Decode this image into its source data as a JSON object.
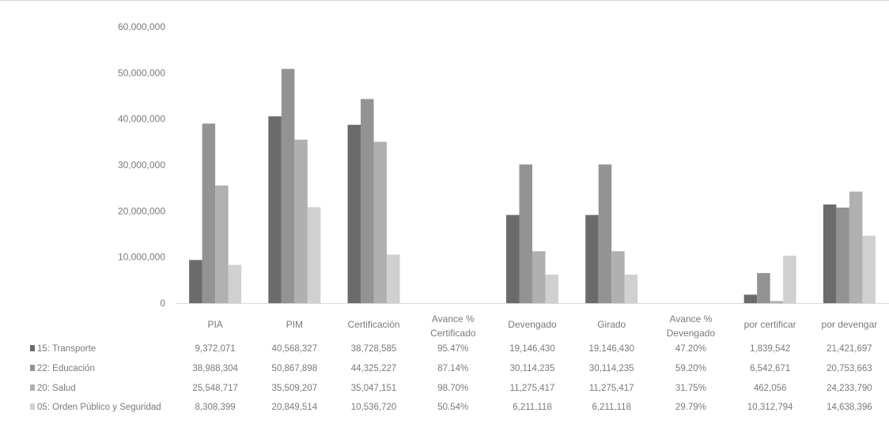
{
  "chart_data": {
    "type": "bar",
    "categories": [
      [
        "PIA"
      ],
      [
        "PIM"
      ],
      [
        "Certificación"
      ],
      [
        "Avance %",
        "Certificado"
      ],
      [
        "Devengado"
      ],
      [
        "Girado"
      ],
      [
        "Avance %",
        "Devengado"
      ],
      [
        "por certificar"
      ],
      [
        "por devengar"
      ]
    ],
    "ylim": [
      0,
      60000000
    ],
    "yticks": [
      "0",
      "10,000,000",
      "20,000,000",
      "30,000,000",
      "40,000,000",
      "50,000,000",
      "60,000,000"
    ],
    "ytick_values": [
      0,
      10000000,
      20000000,
      30000000,
      40000000,
      50000000,
      60000000
    ],
    "grid": false,
    "legend": "data-table",
    "colors": [
      "#6b6b6b",
      "#939393",
      "#b0b0b0",
      "#d0d0d0"
    ],
    "series": [
      {
        "name": "15: Transporte",
        "values": [
          9372071,
          40568327,
          38728585,
          0.9547,
          19146430,
          19146430,
          0.472,
          1839542,
          21421697
        ],
        "labels": [
          "9,372,071",
          "40,568,327",
          "38,728,585",
          "95.47%",
          "19,146,430",
          "19,146,430",
          "47.20%",
          "1,839,542",
          "21,421,697"
        ]
      },
      {
        "name": "22: Educación",
        "values": [
          38988304,
          50867898,
          44325227,
          0.8714,
          30114235,
          30114235,
          0.592,
          6542671,
          20753663
        ],
        "labels": [
          "38,988,304",
          "50,867,898",
          "44,325,227",
          "87.14%",
          "30,114,235",
          "30,114,235",
          "59.20%",
          "6,542,671",
          "20,753,663"
        ]
      },
      {
        "name": "20: Salud",
        "values": [
          25548717,
          35509207,
          35047151,
          0.987,
          11275417,
          11275417,
          0.3175,
          462056,
          24233790
        ],
        "labels": [
          "25,548,717",
          "35,509,207",
          "35,047,151",
          "98.70%",
          "11,275,417",
          "11,275,417",
          "31.75%",
          "462,056",
          "24,233,790"
        ]
      },
      {
        "name": "05: Orden Público y Seguridad",
        "values": [
          8308399,
          20849514,
          10536720,
          0.5054,
          6211118,
          6211118,
          0.2979,
          10312794,
          14638396
        ],
        "labels": [
          "8,308,399",
          "20,849,514",
          "10,536,720",
          "50.54%",
          "6,211,118",
          "6,211,118",
          "29.79%",
          "10,312,794",
          "14,638,396"
        ]
      }
    ]
  }
}
